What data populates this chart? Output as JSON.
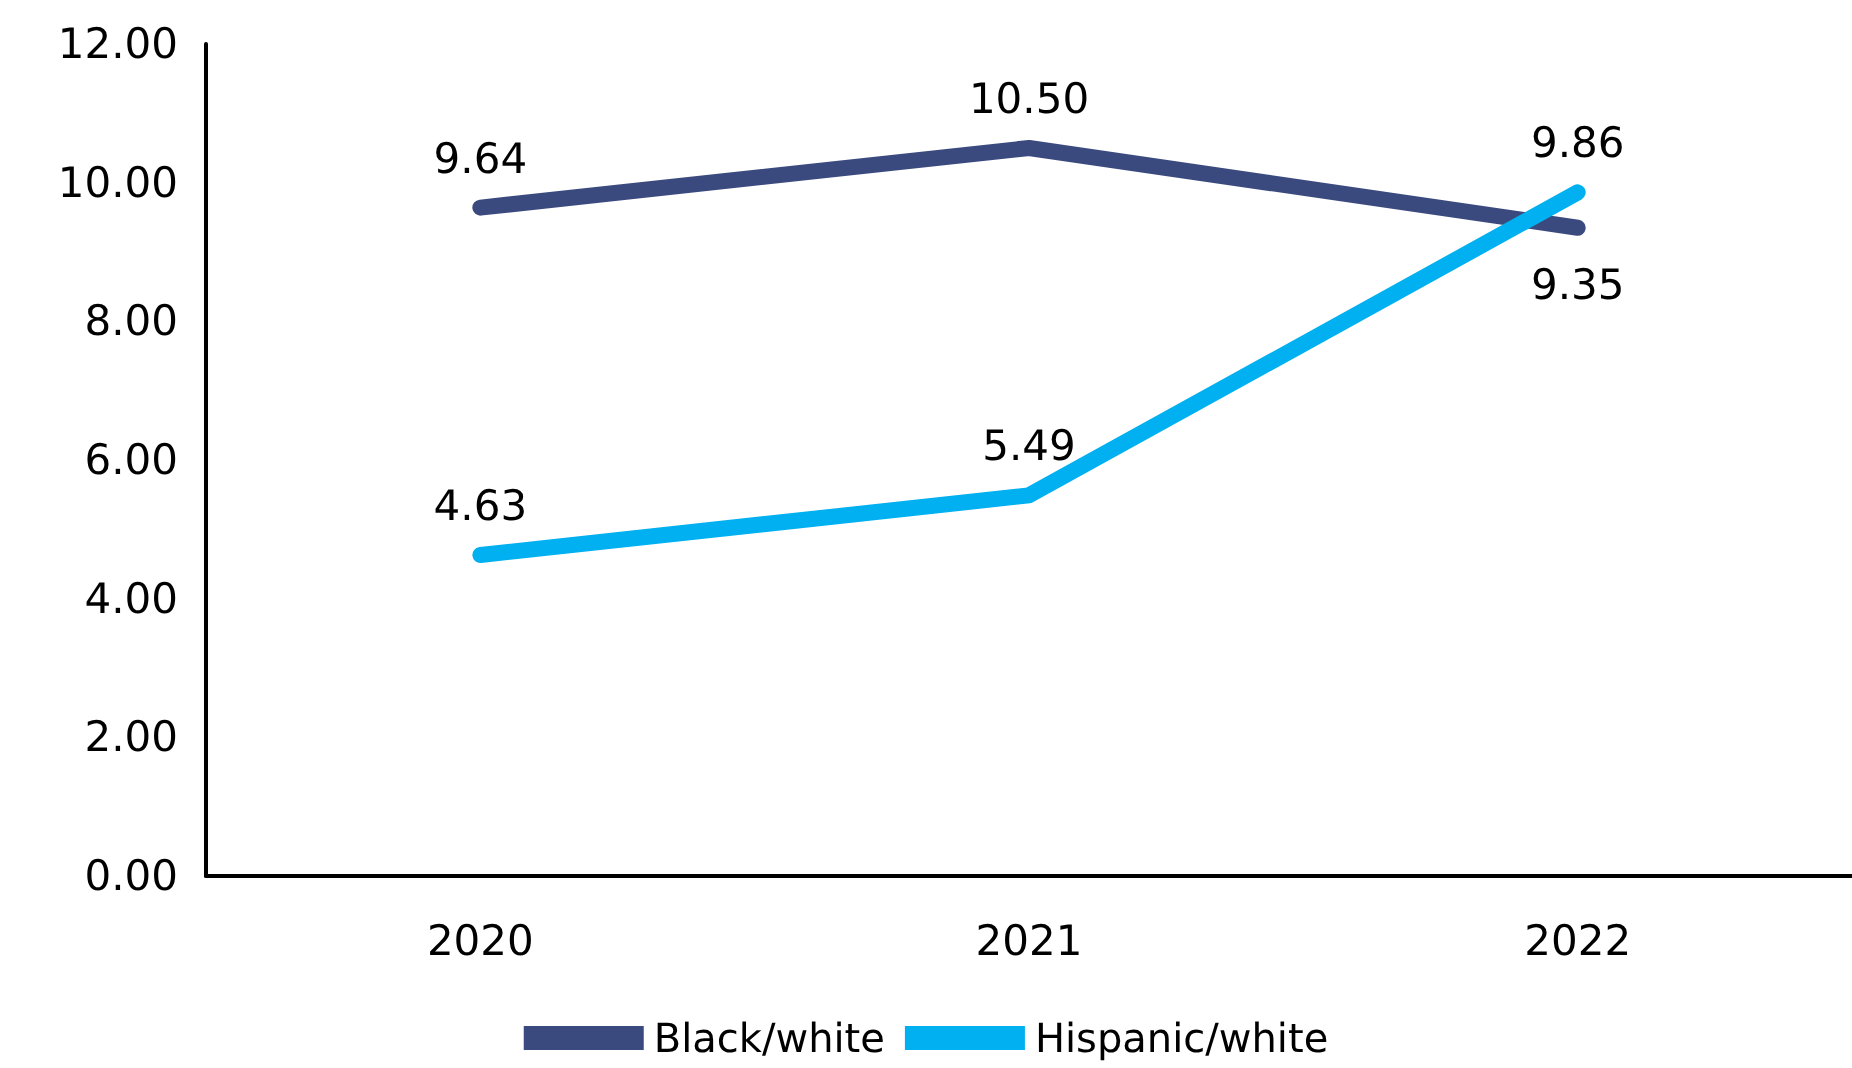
{
  "chart_data": {
    "type": "line",
    "categories": [
      "2020",
      "2021",
      "2022"
    ],
    "series": [
      {
        "name": "Black/white",
        "color": "#3b4a7e",
        "values": [
          9.64,
          10.5,
          9.35
        ],
        "value_labels": [
          "9.64",
          "10.50",
          "9.35"
        ]
      },
      {
        "name": "Hispanic/white",
        "color": "#00b0f0",
        "values": [
          4.63,
          5.49,
          9.86
        ],
        "value_labels": [
          "4.63",
          "5.49",
          "9.86"
        ]
      }
    ],
    "ylim": [
      0,
      12
    ],
    "yticks": [
      {
        "value": 0,
        "label": "0.00"
      },
      {
        "value": 2,
        "label": "2.00"
      },
      {
        "value": 4,
        "label": "4.00"
      },
      {
        "value": 6,
        "label": "6.00"
      },
      {
        "value": 8,
        "label": "8.00"
      },
      {
        "value": 10,
        "label": "10.00"
      },
      {
        "value": 12,
        "label": "12.00"
      }
    ],
    "grid": false,
    "legend": "bottom",
    "marker": "none",
    "line_style": "solid"
  }
}
